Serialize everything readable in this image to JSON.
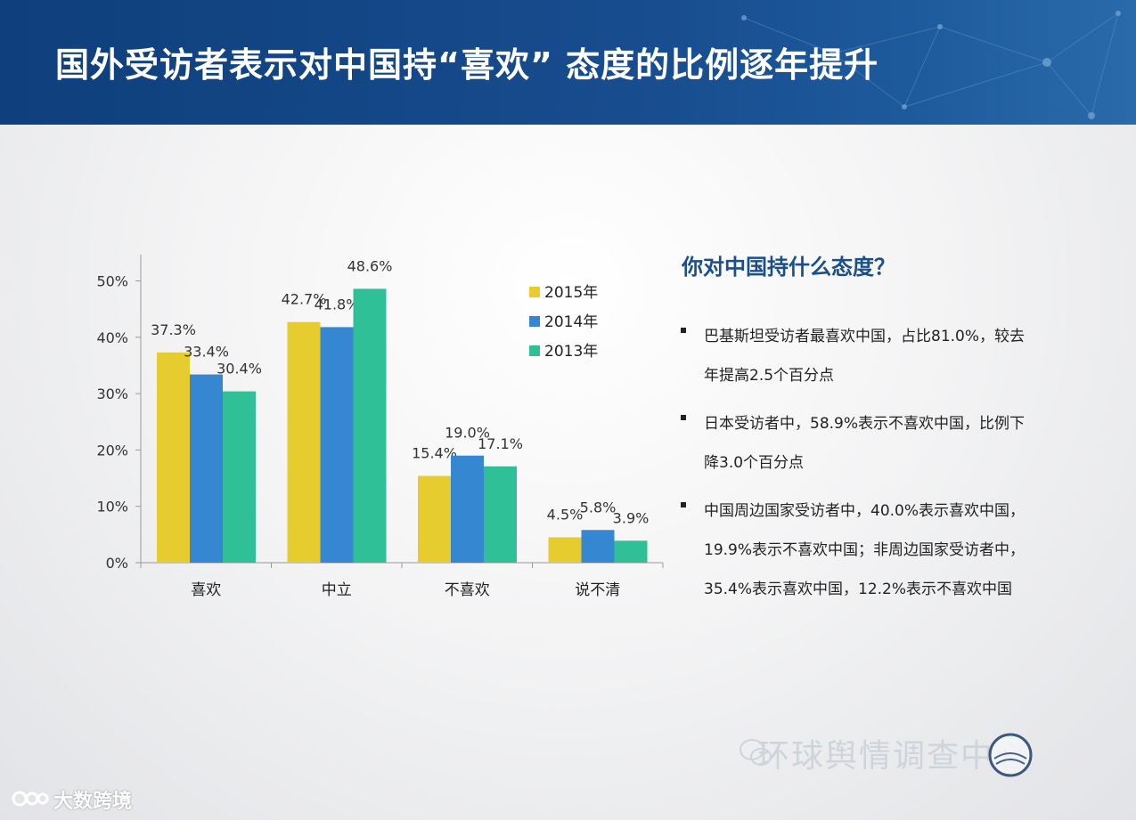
{
  "header": {
    "title": "国外受访者表示对中国持“喜欢” 态度的比例逐年提升"
  },
  "panel": {
    "question": "你对中国持什么态度？",
    "bullets": [
      {
        "lines": [
          "巴基斯坦受访者最喜欢中国，占比81.0%，较去",
          "年提高2.5个百分点"
        ]
      },
      {
        "lines": [
          "日本受访者中，58.9%表示不喜欢中国，比例下",
          "降3.0个百分点"
        ]
      },
      {
        "lines": [
          "中国周边国家受访者中，40.0%表示喜欢中国，",
          "19.9%表示不喜欢中国；非周边国家受访者中，",
          "35.4%表示喜欢中国，12.2%表示不喜欢中国"
        ]
      }
    ]
  },
  "chart_data": {
    "type": "bar",
    "categories": [
      "喜欢",
      "中立",
      "不喜欢",
      "说不清"
    ],
    "series": [
      {
        "name": "2015年",
        "color": "#e6cc2e",
        "values": [
          37.3,
          42.7,
          15.4,
          4.5
        ]
      },
      {
        "name": "2014年",
        "color": "#3687d2",
        "values": [
          33.4,
          41.8,
          19.0,
          5.8
        ]
      },
      {
        "name": "2013年",
        "color": "#2fc098",
        "values": [
          30.4,
          48.6,
          17.1,
          3.9
        ]
      }
    ],
    "value_labels": [
      [
        "37.3%",
        "42.7%",
        "15.4%",
        "4.5%"
      ],
      [
        "33.4%",
        "41.8%",
        "19.0%",
        "5.8%"
      ],
      [
        "30.4%",
        "48.6%",
        "17.1%",
        "3.9%"
      ]
    ],
    "yticks": [
      0,
      10,
      20,
      30,
      40,
      50
    ],
    "ytick_labels": [
      "0%",
      "10%",
      "20%",
      "30%",
      "40%",
      "50%"
    ],
    "ylim": [
      0,
      55
    ],
    "grid": false,
    "legend_position": "top-right"
  },
  "watermark": {
    "text": "环球舆情调查中心",
    "seal_text": "环球舆情"
  },
  "brand": {
    "text": "大数跨境"
  },
  "icons": {
    "chat": "wechat-icon",
    "seal": "seal-logo-icon",
    "brand": "brand-logo-icon"
  }
}
